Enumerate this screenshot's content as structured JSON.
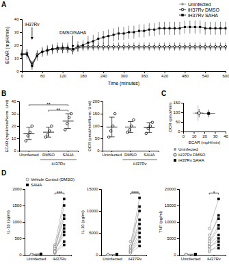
{
  "chart_data": [
    {
      "panel_label": "A",
      "type": "line",
      "x_label": "Time (minutes)",
      "y_label": "ECAR (mpH/min)",
      "x": [
        0,
        15,
        30,
        45,
        60,
        75,
        90,
        105,
        120,
        135,
        150,
        165,
        180,
        195,
        210,
        225,
        240,
        255,
        270,
        285,
        300,
        315,
        330,
        345,
        360,
        375,
        390,
        405,
        420,
        435,
        450,
        465,
        480,
        495,
        510,
        525,
        540,
        555,
        570,
        585,
        600
      ],
      "xlim": [
        0,
        600
      ],
      "xticks": [
        0,
        60,
        120,
        180,
        240,
        300,
        360,
        420,
        480,
        540,
        600
      ],
      "ylim": [
        0,
        40
      ],
      "yticks": [
        0,
        10,
        20,
        30,
        40
      ],
      "legend": "top-right",
      "series": [
        {
          "name": "Uninfected",
          "color": "#8c8c8c",
          "marker": "circle",
          "values": [
            13,
            13,
            6,
            12,
            15,
            16,
            17,
            17,
            18,
            18,
            17,
            18,
            18,
            18,
            18,
            18,
            18,
            18,
            18,
            18,
            18,
            18,
            18,
            18,
            18,
            18,
            18,
            18,
            18,
            18,
            18,
            18,
            18,
            18,
            18,
            18,
            18,
            18,
            18,
            18,
            18
          ],
          "errors": [
            3,
            3,
            2,
            2,
            2,
            2,
            2,
            2,
            2,
            2,
            2,
            2,
            2,
            2,
            2,
            2,
            2,
            2,
            2,
            2,
            2,
            2,
            2,
            2,
            2,
            2,
            2,
            2,
            2,
            2,
            2,
            2,
            2,
            2,
            2,
            2,
            2,
            2,
            2,
            2,
            2
          ]
        },
        {
          "name": "iH37Rv DMSO",
          "color": "#000000",
          "marker": "circle-open",
          "values": [
            13,
            14,
            5,
            13,
            15,
            16,
            17,
            17,
            17,
            17,
            16,
            18,
            19,
            19,
            19,
            19,
            19,
            19,
            19,
            19,
            19,
            19,
            19,
            19,
            19,
            19,
            19,
            19,
            19,
            19,
            19,
            19,
            19,
            19,
            19,
            19,
            19,
            19,
            19,
            19,
            19
          ],
          "errors": [
            3,
            3,
            3,
            3,
            3,
            3,
            3,
            3,
            3,
            3,
            3,
            3,
            3,
            3,
            3,
            3,
            3,
            3,
            3,
            3,
            3,
            3,
            3,
            3,
            3,
            3,
            3,
            3,
            3,
            3,
            3,
            3,
            3,
            3,
            3,
            3,
            3,
            3,
            3,
            3,
            3
          ]
        },
        {
          "name": "iH37Rv SAHA",
          "color": "#000000",
          "marker": "square",
          "values": [
            13,
            13,
            4,
            12,
            15,
            16,
            17,
            18,
            18,
            18,
            17,
            19,
            20,
            22,
            23,
            25,
            26,
            27,
            28,
            29,
            29,
            30,
            30,
            31,
            31,
            32,
            32,
            33,
            33,
            33,
            33,
            33,
            34,
            34,
            34,
            34,
            33,
            33,
            33,
            33,
            33
          ],
          "errors": [
            4,
            4,
            3,
            4,
            4,
            4,
            4,
            4,
            4,
            4,
            4,
            4,
            4,
            5,
            5,
            5,
            5,
            5,
            5,
            5,
            5,
            5,
            5,
            5,
            5,
            5,
            5,
            5,
            5,
            5,
            5,
            5,
            5,
            5,
            5,
            5,
            5,
            5,
            5,
            5,
            5
          ]
        }
      ],
      "annotations": [
        {
          "text": "iH37Rv",
          "x": 30
        },
        {
          "text": "DMSO/SAHA",
          "x": 150
        }
      ]
    },
    {
      "panel_label": "B",
      "type": "scatter",
      "y_label": "ECAR (mpH/min/Norm. Unit)",
      "categories": [
        "Uninfected",
        "DMSO",
        "SAHA"
      ],
      "group_label": {
        "text": "iH37Rv",
        "categories": [
          1,
          2
        ]
      },
      "ylim": [
        0,
        40
      ],
      "yticks": [
        0,
        10,
        20,
        30,
        40
      ],
      "color": "#000000",
      "marker": "circle-open",
      "values": [
        [
          8,
          12,
          15,
          20
        ],
        [
          11,
          13,
          16,
          20
        ],
        [
          17,
          22,
          27,
          30
        ]
      ],
      "means": [
        14,
        15,
        24
      ],
      "errors": [
        5,
        4,
        6
      ],
      "significance": [
        {
          "text": "**",
          "categories": [
            0,
            2
          ]
        },
        {
          "text": "**",
          "categories": [
            1,
            2
          ]
        }
      ]
    },
    {
      "type": "scatter",
      "y_label": "OCR (pmol/min/Norm. Unit)",
      "categories": [
        "Uninfected",
        "DMSO",
        "SAHA"
      ],
      "group_label": {
        "text": "iH37Rv",
        "categories": [
          1,
          2
        ]
      },
      "ylim": [
        0,
        200
      ],
      "yticks": [
        0,
        50,
        100,
        150,
        200
      ],
      "color": "#000000",
      "marker": "circle-open",
      "values": [
        [
          55,
          80,
          100,
          150
        ],
        [
          75,
          85,
          100,
          125
        ],
        [
          70,
          90,
          100,
          115
        ]
      ],
      "means": [
        96,
        96,
        94
      ],
      "errors": [
        40,
        22,
        20
      ]
    },
    {
      "panel_label": "C",
      "type": "scatter",
      "x_label": "ECAR (mpH/min)",
      "y_label": "OCR (pmol/min)",
      "xlim": [
        0,
        40
      ],
      "xticks": [
        0,
        10,
        20,
        30,
        40
      ],
      "ylim": [
        0,
        150
      ],
      "yticks": [
        0,
        50,
        100,
        150
      ],
      "legend": "bottom",
      "series": [
        {
          "name": "Uninfected",
          "color": "#8c8c8c",
          "marker": "circle",
          "x": [
            14
          ],
          "x_errors": [
            5
          ],
          "values": [
            96
          ],
          "errors": [
            40
          ]
        },
        {
          "name": "iH37Rv DMSO",
          "color": "#000000",
          "marker": "circle-open",
          "x": [
            15
          ],
          "x_errors": [
            4
          ],
          "values": [
            96
          ],
          "errors": [
            22
          ]
        },
        {
          "name": "iH37Rv SAHA",
          "color": "#000000",
          "marker": "square",
          "x": [
            24
          ],
          "x_errors": [
            6
          ],
          "values": [
            94
          ],
          "errors": [
            20
          ]
        }
      ]
    },
    {
      "panel_label": "D",
      "type": "paired",
      "y_label": "IL-1β (pg/ml)",
      "categories": [
        "Uninfected",
        "iH37Rv"
      ],
      "ylim": [
        0,
        2000
      ],
      "yticks": [
        0,
        500,
        1000,
        1500,
        2000
      ],
      "legend": "top-left",
      "series": [
        {
          "name": "Vehicle Control (DMSO)",
          "color": "#7f7f7f",
          "marker": "circle-open",
          "values": [
            [
              5,
              10,
              8,
              12,
              6,
              15,
              9,
              7,
              11,
              10
            ],
            [
              50,
              100,
              150,
              200,
              80,
              120,
              300,
              60,
              90,
              250
            ]
          ]
        },
        {
          "name": "SAHA",
          "color": "#000000",
          "marker": "square",
          "values": [
            [
              10,
              20,
              15,
              30,
              12,
              25,
              18,
              14,
              22,
              16
            ],
            [
              900,
              1500,
              600,
              1100,
              400,
              700,
              1700,
              300,
              800,
              1200
            ]
          ]
        }
      ],
      "significance": [
        {
          "text": "***",
          "category": 1
        }
      ]
    },
    {
      "type": "paired",
      "y_label": "IL-10 (pg/ml)",
      "categories": [
        "Uninfected",
        "iH37Rv"
      ],
      "ylim": [
        0,
        15000
      ],
      "yticks": [
        0,
        5000,
        10000,
        15000
      ],
      "series": [
        {
          "color": "#7f7f7f",
          "marker": "circle-open",
          "values": [
            [
              20,
              40,
              30,
              50,
              25,
              35,
              45,
              30,
              20,
              40
            ],
            [
              500,
              1000,
              2000,
              800,
              1500,
              3000,
              600,
              1200,
              400,
              900
            ]
          ]
        },
        {
          "color": "#000000",
          "marker": "square",
          "values": [
            [
              50,
              100,
              80,
              120,
              60,
              90,
              110,
              70,
              60,
              90
            ],
            [
              4000,
              8000,
              13000,
              5000,
              6000,
              10000,
              3000,
              7000,
              2000,
              11000
            ]
          ]
        }
      ],
      "significance": [
        {
          "text": "****",
          "category": 1
        }
      ]
    },
    {
      "type": "paired",
      "y_label": "TNF (pg/ml)",
      "categories": [
        "Uninfected",
        "iH37Rv"
      ],
      "ylim": [
        0,
        20000
      ],
      "yticks": [
        0,
        5000,
        10000,
        15000,
        20000
      ],
      "series": [
        {
          "color": "#7f7f7f",
          "marker": "circle-open",
          "values": [
            [
              50,
              100,
              80,
              120,
              60,
              90,
              70,
              110,
              40,
              100
            ],
            [
              2000,
              5000,
              8000,
              3000,
              1000,
              4000,
              6000,
              2500,
              1500,
              3500
            ]
          ]
        },
        {
          "color": "#000000",
          "marker": "square",
          "values": [
            [
              100,
              150,
              120,
              200,
              90,
              160,
              130,
              180,
              80,
              140
            ],
            [
              5000,
              12000,
              17000,
              6000,
              3000,
              9000,
              11000,
              4000,
              2000,
              8000
            ]
          ]
        }
      ],
      "significance": [
        {
          "text": "*",
          "category": 1
        }
      ]
    }
  ]
}
